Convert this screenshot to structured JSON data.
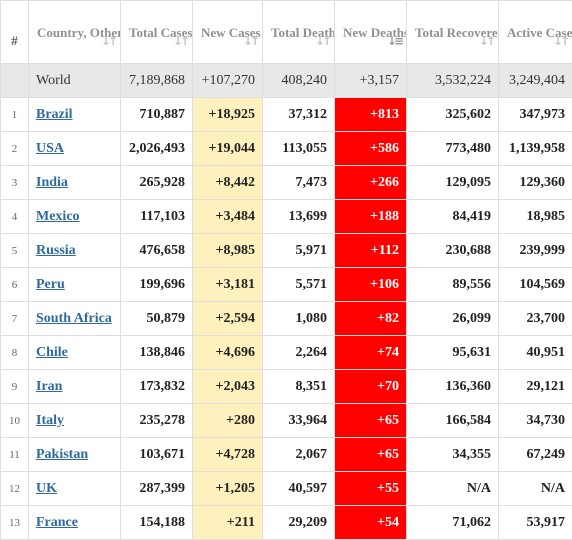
{
  "table": {
    "headers": [
      {
        "label": "#",
        "sortable": false
      },
      {
        "label": "Country, Other",
        "sortable": true
      },
      {
        "label": "Total Cases",
        "sortable": true
      },
      {
        "label": "New Cases",
        "sortable": true
      },
      {
        "label": "Total Deaths",
        "sortable": true
      },
      {
        "label": "New Deaths",
        "sortable": true,
        "active_sort": "descending"
      },
      {
        "label": "Total Recovered",
        "sortable": true
      },
      {
        "label": "Active Cases",
        "sortable": true
      }
    ],
    "world": {
      "country": "World",
      "total_cases": "7,189,868",
      "new_cases": "+107,270",
      "total_deaths": "408,240",
      "new_deaths": "+3,157",
      "total_recovered": "3,532,224",
      "active_cases": "3,249,404"
    },
    "rows": [
      {
        "rank": "1",
        "country": "Brazil",
        "total_cases": "710,887",
        "new_cases": "+18,925",
        "total_deaths": "37,312",
        "new_deaths": "+813",
        "total_recovered": "325,602",
        "active_cases": "347,973"
      },
      {
        "rank": "2",
        "country": "USA",
        "total_cases": "2,026,493",
        "new_cases": "+19,044",
        "total_deaths": "113,055",
        "new_deaths": "+586",
        "total_recovered": "773,480",
        "active_cases": "1,139,958"
      },
      {
        "rank": "3",
        "country": "India",
        "total_cases": "265,928",
        "new_cases": "+8,442",
        "total_deaths": "7,473",
        "new_deaths": "+266",
        "total_recovered": "129,095",
        "active_cases": "129,360"
      },
      {
        "rank": "4",
        "country": "Mexico",
        "total_cases": "117,103",
        "new_cases": "+3,484",
        "total_deaths": "13,699",
        "new_deaths": "+188",
        "total_recovered": "84,419",
        "active_cases": "18,985"
      },
      {
        "rank": "5",
        "country": "Russia",
        "total_cases": "476,658",
        "new_cases": "+8,985",
        "total_deaths": "5,971",
        "new_deaths": "+112",
        "total_recovered": "230,688",
        "active_cases": "239,999"
      },
      {
        "rank": "6",
        "country": "Peru",
        "total_cases": "199,696",
        "new_cases": "+3,181",
        "total_deaths": "5,571",
        "new_deaths": "+106",
        "total_recovered": "89,556",
        "active_cases": "104,569"
      },
      {
        "rank": "7",
        "country": "South Africa",
        "total_cases": "50,879",
        "new_cases": "+2,594",
        "total_deaths": "1,080",
        "new_deaths": "+82",
        "total_recovered": "26,099",
        "active_cases": "23,700"
      },
      {
        "rank": "8",
        "country": "Chile",
        "total_cases": "138,846",
        "new_cases": "+4,696",
        "total_deaths": "2,264",
        "new_deaths": "+74",
        "total_recovered": "95,631",
        "active_cases": "40,951"
      },
      {
        "rank": "9",
        "country": "Iran",
        "total_cases": "173,832",
        "new_cases": "+2,043",
        "total_deaths": "8,351",
        "new_deaths": "+70",
        "total_recovered": "136,360",
        "active_cases": "29,121"
      },
      {
        "rank": "10",
        "country": "Italy",
        "total_cases": "235,278",
        "new_cases": "+280",
        "total_deaths": "33,964",
        "new_deaths": "+65",
        "total_recovered": "166,584",
        "active_cases": "34,730"
      },
      {
        "rank": "11",
        "country": "Pakistan",
        "total_cases": "103,671",
        "new_cases": "+4,728",
        "total_deaths": "2,067",
        "new_deaths": "+65",
        "total_recovered": "34,355",
        "active_cases": "67,249"
      },
      {
        "rank": "12",
        "country": "UK",
        "total_cases": "287,399",
        "new_cases": "+1,205",
        "total_deaths": "40,597",
        "new_deaths": "+55",
        "total_recovered": "N/A",
        "active_cases": "N/A"
      },
      {
        "rank": "13",
        "country": "France",
        "total_cases": "154,188",
        "new_cases": "+211",
        "total_deaths": "29,209",
        "new_deaths": "+54",
        "total_recovered": "71,062",
        "active_cases": "53,917"
      }
    ]
  },
  "colors": {
    "new_cases_bg": "#fff1be",
    "new_deaths_bg": "#ff0000",
    "link": "#2f6a9e",
    "world_row_bg": "#e8e8e8"
  },
  "icons": {
    "sort": "sort-arrows-icon",
    "sort_active": "sort-descending-icon"
  }
}
